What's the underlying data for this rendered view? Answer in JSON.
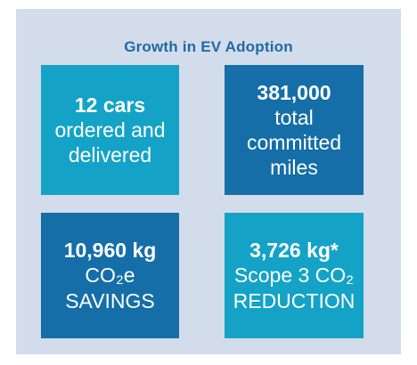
{
  "title": "Growth in EV Adoption",
  "tiles": [
    {
      "value": "12 cars",
      "lines": [
        "ordered and",
        "delivered"
      ],
      "color": "#14a3c7"
    },
    {
      "value": "381,000",
      "lines": [
        "total",
        "committed",
        "miles"
      ],
      "color": "#156ea8"
    },
    {
      "value": "10,960 kg",
      "lines": [
        "CO₂e",
        "SAVINGS"
      ],
      "color": "#156ea8"
    },
    {
      "value": "3,726 kg*",
      "lines": [
        "Scope 3 CO₂",
        "REDUCTION"
      ],
      "color": "#14a3c7"
    }
  ],
  "colors": {
    "background": "#d3dceb",
    "title": "#1f6aa6"
  }
}
